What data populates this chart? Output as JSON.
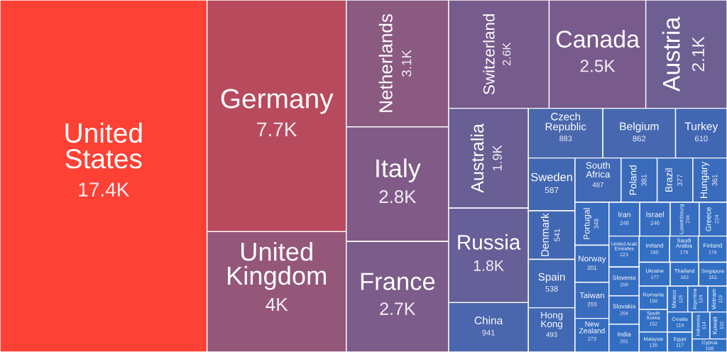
{
  "chart_data": {
    "type": "other",
    "categories": [
      "United States",
      "Germany",
      "United Kingdom",
      "Netherlands",
      "Italy",
      "France",
      "Switzerland",
      "Canada",
      "Austria",
      "Australia",
      "Russia",
      "China",
      "Czech Republic",
      "Belgium",
      "Turkey",
      "Sweden",
      "Denmark",
      "Spain",
      "Hong Kong",
      "South Africa",
      "Poland",
      "Brazil",
      "Hungary",
      "Portugal",
      "Norway",
      "Taiwan",
      "New Zealand",
      "Iran",
      "Israel",
      "Luxembourg",
      "Greece",
      "United Arab Emirates",
      "Slovenia",
      "Slovakia",
      "India",
      "Ireland",
      "Saudi Arabia",
      "Finland",
      "Ukraine",
      "Thailand",
      "Singapore",
      "Romania",
      "South Korea",
      "Malaysia",
      "Mexico",
      "Argentina",
      "Vietnam",
      "Croatia",
      "Egypt",
      "Indonesia",
      "Kuwait",
      "Cyprus"
    ],
    "values": [
      17400,
      7700,
      4000,
      3100,
      2800,
      2700,
      2600,
      2500,
      2100,
      1900,
      1800,
      941,
      883,
      862,
      610,
      587,
      541,
      538,
      493,
      487,
      381,
      377,
      361,
      348,
      301,
      293,
      273,
      248,
      246,
      234,
      224,
      223,
      208,
      204,
      201,
      190,
      179,
      179,
      177,
      163,
      161,
      158,
      152,
      135,
      125,
      124,
      119,
      119,
      117,
      114,
      110,
      108
    ],
    "value_labels": [
      "17.4K",
      "7.7K",
      "4K",
      "3.1K",
      "2.8K",
      "2.7K",
      "2.6K",
      "2.5K",
      "2.1K",
      "1.9K",
      "1.8K",
      "941",
      "883",
      "862",
      "610",
      "587",
      "541",
      "538",
      "493",
      "487",
      "381",
      "377",
      "361",
      "348",
      "301",
      "293",
      "273",
      "248",
      "246",
      "234",
      "224",
      "223",
      "208",
      "204",
      "201",
      "190",
      "179",
      "179",
      "177",
      "163",
      "161",
      "158",
      "152",
      "135",
      "125",
      "124",
      "119",
      "119",
      "117",
      "114",
      "110",
      "108"
    ],
    "colors": [
      "#fe4135",
      "#b84a5e",
      "#94577a",
      "#8a5a80",
      "#805b87",
      "#7c5c8a",
      "#775b8c",
      "#785b8c",
      "#6d5f92",
      "#695f94",
      "#665f98",
      "#4a66ac",
      "#4967ad",
      "#4768b0",
      "#4167b2",
      "#4167b2",
      "#4267b2",
      "#4268b3",
      "#4268b3",
      "#4168b4",
      "#3a6bbb",
      "#3a6bbb",
      "#3a6bbc",
      "#3a6bbc",
      "#3a6cbd",
      "#3a6cbd",
      "#376dbf",
      "#366dc0",
      "#366dc0",
      "#366dc0",
      "#356ec1",
      "#356ec1",
      "#356ec1",
      "#346ec2",
      "#346ec2",
      "#336fc3",
      "#336fc3",
      "#336fc3",
      "#336fc3",
      "#3270c4",
      "#3270c4",
      "#3270c4",
      "#3270c4",
      "#3170c5",
      "#3170c5",
      "#3170c5",
      "#3071c6",
      "#3071c6",
      "#3071c6",
      "#3071c6",
      "#3071c6",
      "#3071c6"
    ]
  }
}
